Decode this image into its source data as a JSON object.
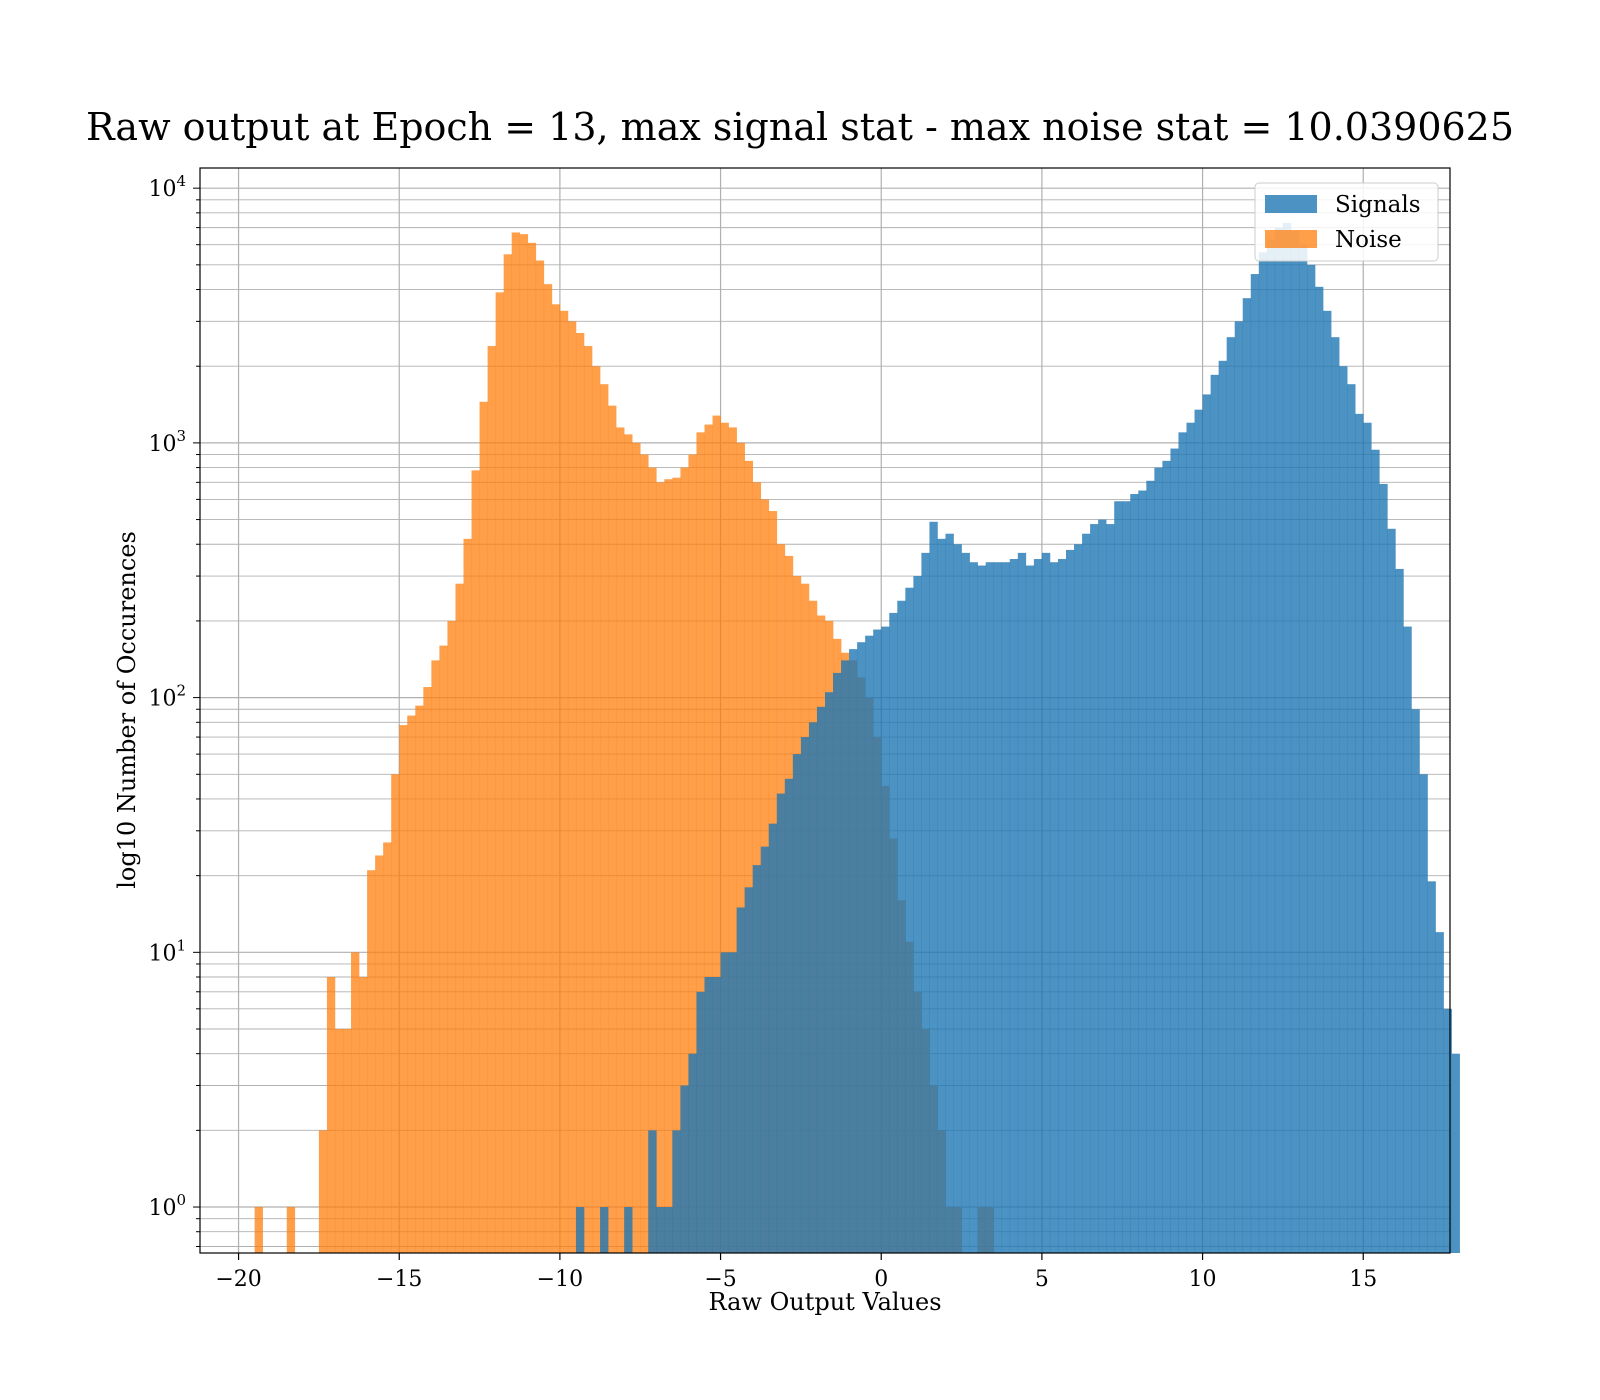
{
  "chart_data": {
    "type": "histogram",
    "title": "Raw output at Epoch = 13, max signal stat - max noise stat = 10.0390625",
    "xlabel": "Raw Output Values",
    "ylabel": "log10 Number of Occurences",
    "xlim": [
      -21.2,
      17.7
    ],
    "ylim": [
      0.66,
      12000
    ],
    "yscale": "log",
    "grid": true,
    "legend_position": "top-right",
    "x_ticks": [
      {
        "value": -20,
        "label": "−20"
      },
      {
        "value": -15,
        "label": "−15"
      },
      {
        "value": -10,
        "label": "−10"
      },
      {
        "value": -5,
        "label": "−5"
      },
      {
        "value": 0,
        "label": "0"
      },
      {
        "value": 5,
        "label": "5"
      },
      {
        "value": 10,
        "label": "10"
      },
      {
        "value": 15,
        "label": "15"
      }
    ],
    "y_ticks": [
      {
        "value": 1,
        "base": "10",
        "exp": "0"
      },
      {
        "value": 10,
        "base": "10",
        "exp": "1"
      },
      {
        "value": 100,
        "base": "10",
        "exp": "2"
      },
      {
        "value": 1000,
        "base": "10",
        "exp": "3"
      },
      {
        "value": 10000,
        "base": "10",
        "exp": "4"
      }
    ],
    "series": [
      {
        "name": "Noise",
        "color": "#ff7f0e",
        "alpha": 0.75,
        "bin_start": -19.5,
        "bin_width": 0.25,
        "counts": [
          1,
          0,
          0,
          0,
          1,
          0,
          0,
          0,
          2,
          8,
          5,
          5,
          10,
          8,
          21,
          24,
          27,
          50,
          78,
          85,
          93,
          110,
          140,
          160,
          200,
          280,
          420,
          780,
          1450,
          2400,
          3900,
          5500,
          6700,
          6600,
          6100,
          5200,
          4200,
          3500,
          3300,
          3000,
          2700,
          2400,
          2000,
          1700,
          1400,
          1150,
          1080,
          1000,
          900,
          800,
          700,
          720,
          730,
          800,
          900,
          1100,
          1180,
          1280,
          1200,
          1150,
          1000,
          850,
          700,
          600,
          540,
          400,
          360,
          300,
          280,
          240,
          210,
          200,
          170,
          150,
          140,
          120,
          100,
          70,
          45,
          28,
          16,
          11,
          7,
          5,
          3,
          2,
          1,
          1,
          0,
          0,
          1,
          1
        ]
      },
      {
        "name": "Signals",
        "color": "#1f77b4",
        "alpha": 0.8,
        "bin_start": -9.5,
        "bin_width": 0.25,
        "counts": [
          1,
          0,
          0,
          1,
          0,
          0,
          1,
          0,
          0,
          2,
          1,
          1,
          2,
          3,
          4,
          7,
          8,
          8,
          10,
          10,
          15,
          18,
          22,
          26,
          32,
          42,
          48,
          60,
          70,
          80,
          92,
          105,
          125,
          140,
          155,
          165,
          175,
          185,
          190,
          215,
          240,
          270,
          300,
          370,
          490,
          420,
          440,
          400,
          370,
          340,
          330,
          340,
          340,
          340,
          350,
          370,
          330,
          350,
          370,
          340,
          350,
          380,
          400,
          440,
          480,
          500,
          480,
          590,
          590,
          630,
          650,
          710,
          800,
          850,
          950,
          1100,
          1200,
          1350,
          1550,
          1850,
          2100,
          2600,
          3000,
          3700,
          4600,
          5600,
          6300,
          7000,
          7300,
          6800,
          6000,
          5000,
          4100,
          3300,
          2600,
          2000,
          1700,
          1300,
          1200,
          940,
          690,
          460,
          320,
          190,
          90,
          50,
          19,
          12,
          6,
          4
        ]
      }
    ]
  }
}
